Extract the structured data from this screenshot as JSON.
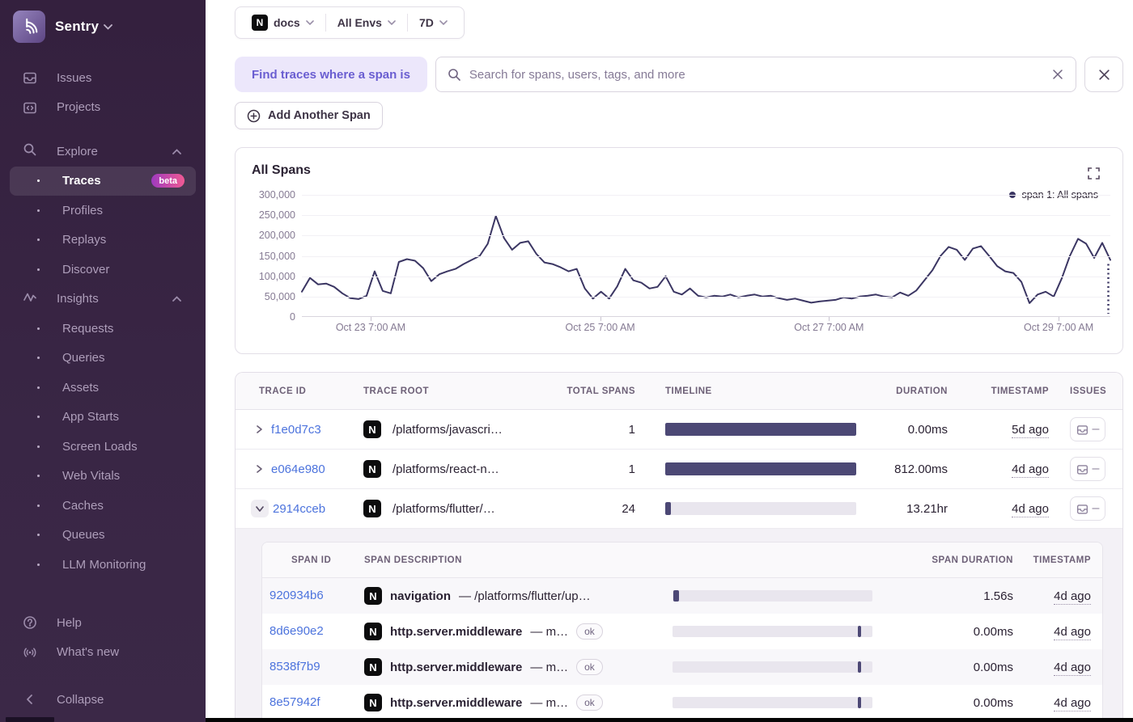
{
  "colors": {
    "sidebar_bg": "#392645",
    "accent_purple": "#6a5ed1",
    "link_blue": "#4c73dd",
    "chart_line": "#3b3663",
    "bar_fill": "#4c4875",
    "bar_track": "#e9e6ee",
    "beta_gradient_start": "#9e3abf",
    "beta_gradient_end": "#f05a93",
    "header_text": "#6d6077",
    "muted_axis": "#857a93"
  },
  "sidebar": {
    "brand": "Sentry",
    "items_top": [
      {
        "label": "Issues"
      },
      {
        "label": "Projects"
      }
    ],
    "explore": {
      "label": "Explore",
      "items": [
        {
          "label": "Traces",
          "badge": "beta",
          "active": true
        },
        {
          "label": "Profiles"
        },
        {
          "label": "Replays"
        },
        {
          "label": "Discover"
        }
      ]
    },
    "insights": {
      "label": "Insights",
      "items": [
        {
          "label": "Requests"
        },
        {
          "label": "Queries"
        },
        {
          "label": "Assets"
        },
        {
          "label": "App Starts"
        },
        {
          "label": "Screen Loads"
        },
        {
          "label": "Web Vitals"
        },
        {
          "label": "Caches"
        },
        {
          "label": "Queues"
        },
        {
          "label": "LLM Monitoring"
        }
      ]
    },
    "footer": [
      {
        "label": "Help"
      },
      {
        "label": "What's new"
      }
    ],
    "collapse": "Collapse"
  },
  "topbar": {
    "project": "docs",
    "env": "All Envs",
    "period": "7D"
  },
  "filters": {
    "find_label": "Find traces where a span is",
    "search_placeholder": "Search for spans, users, tags, and more",
    "add_span": "Add Another Span"
  },
  "chart": {
    "title": "All Spans",
    "legend": "span 1: All spans"
  },
  "chart_data": {
    "type": "line",
    "title": "All Spans",
    "xlabel": "",
    "ylabel": "",
    "ylim": [
      0,
      300000
    ],
    "grid": "horizontal-faint",
    "legend_position": "top-right",
    "legend": [
      {
        "name": "span 1: All spans",
        "color": "#3b3663"
      }
    ],
    "y_ticks": [
      "300,000",
      "250,000",
      "200,000",
      "150,000",
      "100,000",
      "50,000",
      "0"
    ],
    "x_ticks": [
      {
        "label": "Oct 23 7:00 AM",
        "pct": 8.5
      },
      {
        "label": "Oct 25 7:00 AM",
        "pct": 36.9
      },
      {
        "label": "Oct 27 7:00 AM",
        "pct": 65.2
      },
      {
        "label": "Oct 29 7:00 AM",
        "pct": 93.6
      }
    ],
    "series": [
      {
        "name": "span 1: All spans",
        "values": [
          62000,
          96000,
          80000,
          82000,
          74000,
          58000,
          46000,
          44000,
          52000,
          112000,
          64000,
          58000,
          135000,
          142000,
          138000,
          120000,
          88000,
          105000,
          112000,
          118000,
          130000,
          140000,
          150000,
          180000,
          248000,
          194000,
          165000,
          182000,
          186000,
          155000,
          134000,
          130000,
          122000,
          112000,
          118000,
          70000,
          45000,
          62000,
          45000,
          75000,
          118000,
          90000,
          84000,
          70000,
          74000,
          100000,
          62000,
          55000,
          70000,
          52000,
          48000,
          52000,
          50000,
          55000,
          48000,
          52000,
          55000,
          50000,
          52000,
          46000,
          42000,
          45000,
          40000,
          35000,
          38000,
          40000,
          42000,
          48000,
          45000,
          50000,
          52000,
          55000,
          50000,
          48000,
          60000,
          52000,
          65000,
          90000,
          115000,
          150000,
          172000,
          165000,
          140000,
          168000,
          174000,
          150000,
          125000,
          112000,
          108000,
          86000,
          34000,
          55000,
          62000,
          50000,
          95000,
          150000,
          192000,
          180000,
          145000,
          182000,
          140000
        ]
      }
    ],
    "incomplete_tail": true
  },
  "table": {
    "headers": [
      "TRACE ID",
      "TRACE ROOT",
      "TOTAL SPANS",
      "TIMELINE",
      "DURATION",
      "TIMESTAMP",
      "ISSUES"
    ],
    "rows": [
      {
        "trace_id": "f1e0d7c3",
        "root": "/platforms/javascri…",
        "total_spans": "1",
        "duration": "0.00ms",
        "timestamp": "5d ago",
        "timeline": {
          "offset_pct": 0,
          "fill_pct": 100
        }
      },
      {
        "trace_id": "e064e980",
        "root": "/platforms/react-n…",
        "total_spans": "1",
        "duration": "812.00ms",
        "timestamp": "4d ago",
        "timeline": {
          "offset_pct": 0,
          "fill_pct": 100
        }
      },
      {
        "trace_id": "2914cceb",
        "root": "/platforms/flutter/…",
        "total_spans": "24",
        "duration": "13.21hr",
        "timestamp": "4d ago",
        "timeline": {
          "offset_pct": 0,
          "fill_pct": 3
        }
      }
    ],
    "span_table": {
      "headers": [
        "SPAN ID",
        "SPAN DESCRIPTION",
        "SPAN DURATION",
        "TIMESTAMP"
      ],
      "rows": [
        {
          "span_id": "920934b6",
          "op": "navigation",
          "desc_suffix": "—  /platforms/flutter/up…",
          "status": "",
          "duration": "1.56s",
          "timestamp": "4d ago",
          "timeline": {
            "offset_pct": 0.3,
            "fill_pct": 2.8
          }
        },
        {
          "span_id": "8d6e90e2",
          "op": "http.server.middleware",
          "desc_suffix": "—  m…",
          "status": "ok",
          "duration": "0.00ms",
          "timestamp": "4d ago",
          "timeline": {
            "offset_pct": 92.8,
            "fill_pct": 1.4
          }
        },
        {
          "span_id": "8538f7b9",
          "op": "http.server.middleware",
          "desc_suffix": "—  m…",
          "status": "ok",
          "duration": "0.00ms",
          "timestamp": "4d ago",
          "timeline": {
            "offset_pct": 92.8,
            "fill_pct": 1.4
          }
        },
        {
          "span_id": "8e57942f",
          "op": "http.server.middleware",
          "desc_suffix": "—  m…",
          "status": "ok",
          "duration": "0.00ms",
          "timestamp": "4d ago",
          "timeline": {
            "offset_pct": 92.8,
            "fill_pct": 1.4
          }
        }
      ]
    }
  }
}
